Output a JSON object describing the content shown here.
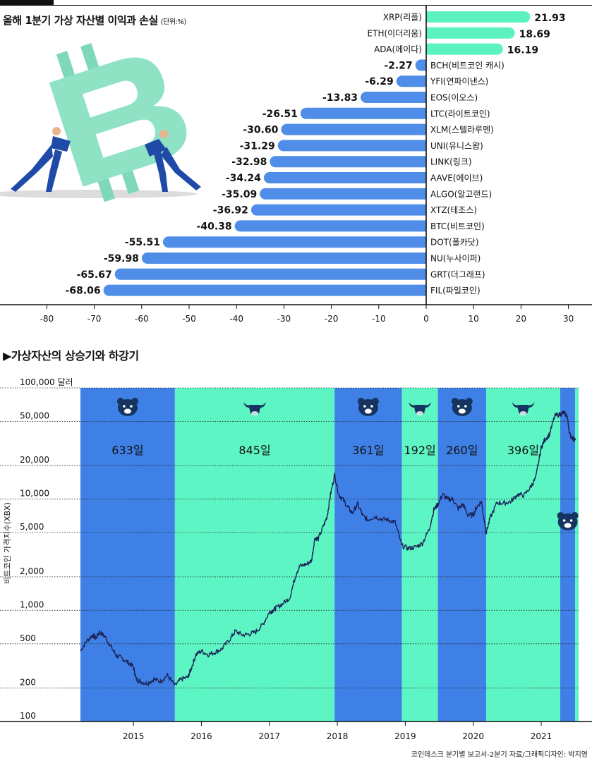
{
  "header": {
    "title": "올해 1분기 가상 자산별 이익과 손실",
    "unit": "(단위:%)"
  },
  "section2": {
    "title": "▶가상자산의 상승기와 하강기"
  },
  "source": "코인데스크 분기별 보고서-2분기 자료/그래픽디자인: 박지영",
  "colors": {
    "negative_bar": "#4f8de8",
    "positive_bar": "#5cf2c0",
    "bear_band": "#3f80e6",
    "bull_band": "#5ef5c4",
    "price_line": "#1b2255",
    "icon": "#15345f"
  },
  "chart_data": [
    {
      "type": "bar",
      "orientation": "horizontal",
      "xlim": [
        -80,
        30
      ],
      "xticks": [
        -80,
        -70,
        -60,
        -50,
        -40,
        -30,
        -20,
        -10,
        0,
        10,
        20,
        30
      ],
      "categories": [
        "XRP(리플)",
        "ETH(이더리움)",
        "ADA(에이다)",
        "BCH(비트코인 캐시)",
        "YFI(연파이낸스)",
        "EOS(이오스)",
        "LTC(라이트코인)",
        "XLM(스텔라루멘)",
        "UNI(유니스왑)",
        "LINK(링크)",
        "AAVE(에이브)",
        "ALGO(알고랜드)",
        "XTZ(테조스)",
        "BTC(비트코인)",
        "DOT(폴카닷)",
        "NU(누사이퍼)",
        "GRT(더그래프)",
        "FIL(파일코인)"
      ],
      "values": [
        21.93,
        18.69,
        16.19,
        -2.27,
        -6.29,
        -13.83,
        -26.51,
        -30.6,
        -31.29,
        -32.98,
        -34.24,
        -35.09,
        -36.92,
        -40.38,
        -55.51,
        -59.98,
        -65.67,
        -68.06
      ],
      "value_labels": [
        "21.93",
        "18.69",
        "16.19",
        "-2.27",
        "-6.29",
        "-13.83",
        "-26.51",
        "-30.60",
        "-31.29",
        "-32.98",
        "-34.24",
        "-35.09",
        "-36.92",
        "-40.38",
        "-55.51",
        "-59.98",
        "-65.67",
        "-68.06"
      ]
    },
    {
      "type": "line",
      "y_scale": "log",
      "ylabel": "비트코인 가격지수(XBX)",
      "ylim": [
        100,
        100000
      ],
      "yticks": [
        100,
        200,
        500,
        1000,
        2000,
        5000,
        10000,
        20000,
        50000,
        100000
      ],
      "ytick_labels": [
        "100",
        "200",
        "500",
        "1,000",
        "2,000",
        "5,000",
        "10,000",
        "20,000",
        "50,000",
        "100,000 달러"
      ],
      "xlim": [
        2014.22,
        2021.55
      ],
      "xticks": [
        2015,
        2016,
        2017,
        2018,
        2019,
        2020,
        2021
      ],
      "xtick_labels": [
        "2015",
        "2016",
        "2017",
        "2018",
        "2019",
        "2020",
        "2021"
      ],
      "phases": [
        {
          "type": "bear",
          "start": 2014.22,
          "end": 2015.61,
          "label": "633일"
        },
        {
          "type": "bull",
          "start": 2015.61,
          "end": 2017.96,
          "label": "845일"
        },
        {
          "type": "bear",
          "start": 2017.96,
          "end": 2018.95,
          "label": "361일"
        },
        {
          "type": "bull",
          "start": 2018.95,
          "end": 2019.48,
          "label": "192일"
        },
        {
          "type": "bear",
          "start": 2019.48,
          "end": 2020.19,
          "label": "260일"
        },
        {
          "type": "bull",
          "start": 2020.19,
          "end": 2021.28,
          "label": "396일"
        },
        {
          "type": "bear",
          "start": 2021.28,
          "end": 2021.5,
          "label": ""
        },
        {
          "type": "bull",
          "start": 2021.5,
          "end": 2021.55,
          "label": ""
        }
      ],
      "series": [
        {
          "x": [
            2014.22,
            2014.3,
            2014.4,
            2014.45,
            2014.5,
            2014.58,
            2014.67,
            2014.75,
            2014.83,
            2014.92,
            2015.0,
            2015.04,
            2015.1,
            2015.2,
            2015.3,
            2015.4,
            2015.5,
            2015.61,
            2015.7,
            2015.8,
            2015.85,
            2015.92,
            2016.0,
            2016.1,
            2016.2,
            2016.3,
            2016.42,
            2016.5,
            2016.6,
            2016.7,
            2016.8,
            2016.9,
            2017.0,
            2017.05,
            2017.1,
            2017.2,
            2017.3,
            2017.4,
            2017.45,
            2017.55,
            2017.62,
            2017.67,
            2017.72,
            2017.8,
            2017.85,
            2017.9,
            2017.96,
            2018.02,
            2018.08,
            2018.15,
            2018.22,
            2018.3,
            2018.38,
            2018.45,
            2018.55,
            2018.65,
            2018.75,
            2018.85,
            2018.95,
            2019.05,
            2019.15,
            2019.25,
            2019.35,
            2019.42,
            2019.48,
            2019.55,
            2019.62,
            2019.7,
            2019.78,
            2019.85,
            2019.92,
            2020.0,
            2020.05,
            2020.12,
            2020.19,
            2020.25,
            2020.35,
            2020.45,
            2020.55,
            2020.65,
            2020.75,
            2020.85,
            2020.92,
            2021.0,
            2021.05,
            2021.12,
            2021.2,
            2021.28,
            2021.33,
            2021.38,
            2021.42,
            2021.47,
            2021.5
          ],
          "y": [
            430,
            520,
            600,
            560,
            640,
            580,
            470,
            390,
            370,
            340,
            310,
            240,
            230,
            220,
            240,
            230,
            260,
            210,
            240,
            250,
            300,
            400,
            430,
            400,
            420,
            450,
            550,
            650,
            600,
            610,
            640,
            740,
            960,
            1000,
            1050,
            1150,
            1300,
            2200,
            2500,
            2600,
            2800,
            4500,
            4400,
            5800,
            7000,
            11000,
            16500,
            11000,
            10000,
            8500,
            7500,
            9000,
            7000,
            6500,
            7000,
            6600,
            6500,
            6200,
            3800,
            3600,
            3700,
            4000,
            5300,
            8000,
            9000,
            11000,
            10000,
            10000,
            8200,
            9000,
            7200,
            7200,
            8500,
            9500,
            5000,
            6800,
            9300,
            9200,
            9500,
            11000,
            10800,
            13000,
            15500,
            29000,
            34000,
            38000,
            56000,
            58000,
            60000,
            56000,
            38000,
            35000,
            34000
          ]
        }
      ]
    }
  ]
}
